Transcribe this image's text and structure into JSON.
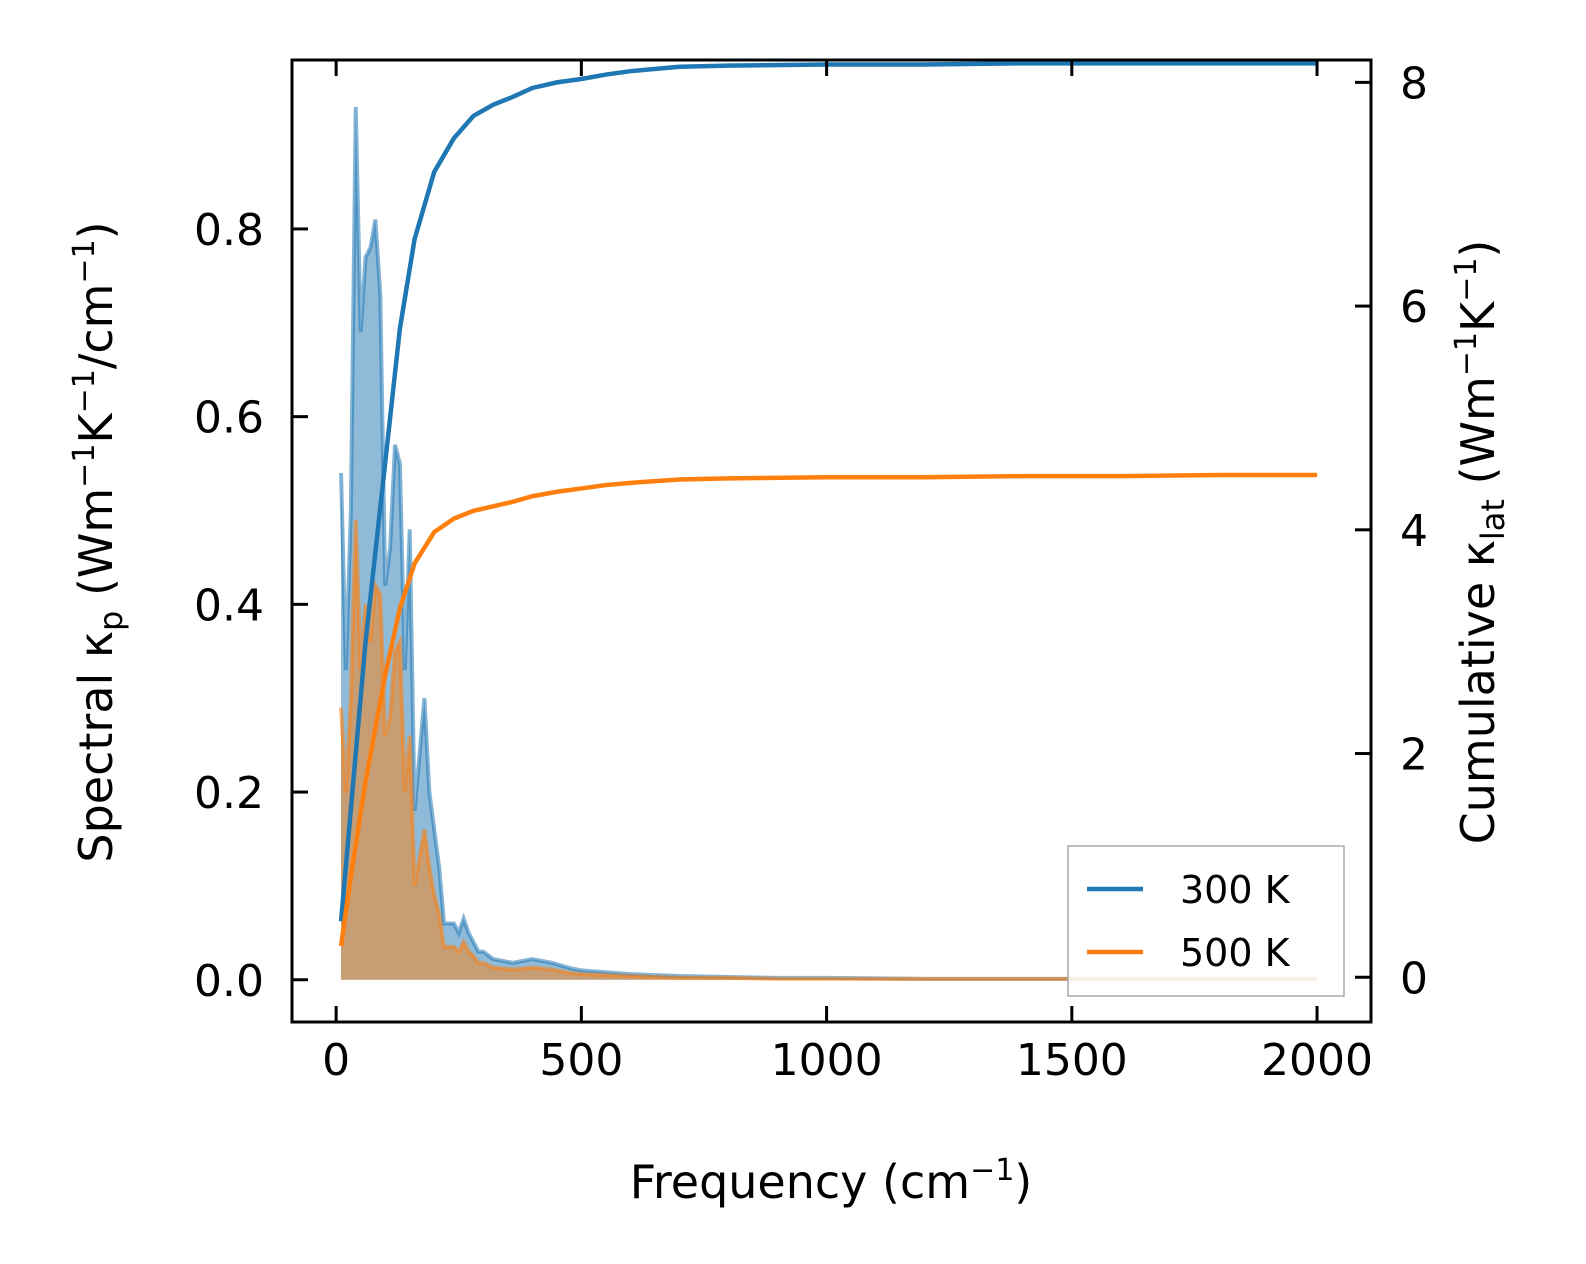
{
  "chart_data": {
    "type": "line",
    "xlabel": "Frequency (cm",
    "xlabel_sup": "−1",
    "xlabel_end": ")",
    "ylabel_left": "Spectral κ",
    "ylabel_left_sub": "p",
    "ylabel_left_units": " (Wm",
    "ylabel_left_sup1": "−1",
    "ylabel_left_mid": "K",
    "ylabel_left_sup2": "−1",
    "ylabel_left_mid2": "/cm",
    "ylabel_left_sup3": "−1",
    "ylabel_left_end": ")",
    "ylabel_right": "Cumulative κ",
    "ylabel_right_sub": "lat",
    "ylabel_right_units": " (Wm",
    "ylabel_right_sup1": "−1",
    "ylabel_right_mid": "K",
    "ylabel_right_sup2": "−1",
    "ylabel_right_end": ")",
    "xlim": [
      -90,
      2110
    ],
    "ylim_left": [
      -0.045,
      0.98
    ],
    "ylim_right": [
      -0.4,
      8.2
    ],
    "x_ticks": [
      0,
      500,
      1000,
      1500,
      2000
    ],
    "x_tick_labels": [
      "0",
      "500",
      "1000",
      "1500",
      "2000"
    ],
    "y_left_ticks": [
      0.0,
      0.2,
      0.4,
      0.6,
      0.8
    ],
    "y_left_tick_labels": [
      "0.0",
      "0.2",
      "0.4",
      "0.6",
      "0.8"
    ],
    "y_right_ticks": [
      0,
      2,
      4,
      6,
      8
    ],
    "y_right_tick_labels": [
      "0",
      "2",
      "4",
      "6",
      "8"
    ],
    "legend": {
      "placement": "lower-right",
      "entries": [
        "300 K",
        "500 K"
      ]
    },
    "series": [
      {
        "name": "300 K",
        "color": "#1f77b4",
        "spectral_axis": "left",
        "spectral": {
          "x": [
            10,
            20,
            30,
            40,
            50,
            60,
            70,
            80,
            90,
            100,
            110,
            120,
            130,
            140,
            150,
            160,
            170,
            180,
            190,
            200,
            210,
            220,
            230,
            240,
            250,
            260,
            270,
            280,
            290,
            300,
            320,
            340,
            360,
            380,
            400,
            420,
            440,
            460,
            480,
            500,
            550,
            600,
            650,
            700,
            800,
            900,
            1000,
            1200,
            1400,
            1600,
            1800,
            2000
          ],
          "y": [
            0.54,
            0.33,
            0.5,
            0.93,
            0.69,
            0.77,
            0.78,
            0.81,
            0.73,
            0.42,
            0.46,
            0.57,
            0.55,
            0.33,
            0.48,
            0.18,
            0.24,
            0.3,
            0.2,
            0.16,
            0.12,
            0.06,
            0.06,
            0.06,
            0.05,
            0.065,
            0.05,
            0.04,
            0.03,
            0.03,
            0.022,
            0.02,
            0.018,
            0.02,
            0.022,
            0.02,
            0.018,
            0.015,
            0.012,
            0.01,
            0.008,
            0.006,
            0.005,
            0.004,
            0.003,
            0.002,
            0.002,
            0.001,
            0.001,
            0.001,
            0.001,
            0.001
          ]
        },
        "cumulative_axis": "right",
        "cumulative": {
          "x": [
            10,
            30,
            60,
            100,
            130,
            160,
            200,
            240,
            280,
            320,
            360,
            400,
            450,
            500,
            550,
            600,
            700,
            800,
            1000,
            1200,
            1400,
            1600,
            1800,
            2000
          ],
          "y": [
            0.5,
            1.5,
            3.0,
            4.6,
            5.8,
            6.6,
            7.2,
            7.5,
            7.7,
            7.8,
            7.87,
            7.95,
            8.0,
            8.03,
            8.07,
            8.1,
            8.14,
            8.15,
            8.16,
            8.16,
            8.17,
            8.17,
            8.17,
            8.17
          ]
        }
      },
      {
        "name": "500 K",
        "color": "#ff7f0e",
        "spectral_axis": "left",
        "spectral": {
          "x": [
            10,
            20,
            30,
            40,
            50,
            60,
            70,
            80,
            90,
            100,
            110,
            120,
            130,
            140,
            150,
            160,
            170,
            180,
            190,
            200,
            210,
            220,
            230,
            240,
            250,
            260,
            270,
            280,
            290,
            300,
            320,
            340,
            360,
            380,
            400,
            420,
            440,
            460,
            480,
            500,
            550,
            600,
            650,
            700,
            800,
            900,
            1000,
            1200,
            1400,
            1600,
            1800,
            2000
          ],
          "y": [
            0.29,
            0.2,
            0.3,
            0.49,
            0.33,
            0.4,
            0.36,
            0.42,
            0.41,
            0.26,
            0.28,
            0.35,
            0.36,
            0.2,
            0.26,
            0.1,
            0.13,
            0.16,
            0.12,
            0.09,
            0.07,
            0.035,
            0.035,
            0.035,
            0.03,
            0.04,
            0.03,
            0.025,
            0.018,
            0.018,
            0.013,
            0.012,
            0.011,
            0.012,
            0.013,
            0.012,
            0.011,
            0.009,
            0.007,
            0.006,
            0.005,
            0.004,
            0.003,
            0.002,
            0.002,
            0.001,
            0.001,
            0.001,
            0.001,
            0.001,
            0.001,
            0.001
          ]
        },
        "cumulative_axis": "right",
        "cumulative": {
          "x": [
            10,
            30,
            60,
            100,
            130,
            160,
            200,
            240,
            280,
            320,
            360,
            400,
            450,
            500,
            550,
            600,
            700,
            800,
            1000,
            1200,
            1400,
            1600,
            1800,
            2000
          ],
          "y": [
            0.28,
            0.9,
            1.75,
            2.7,
            3.3,
            3.7,
            3.98,
            4.1,
            4.17,
            4.21,
            4.25,
            4.3,
            4.34,
            4.37,
            4.4,
            4.42,
            4.45,
            4.46,
            4.47,
            4.47,
            4.48,
            4.48,
            4.49,
            4.49
          ]
        }
      }
    ]
  }
}
